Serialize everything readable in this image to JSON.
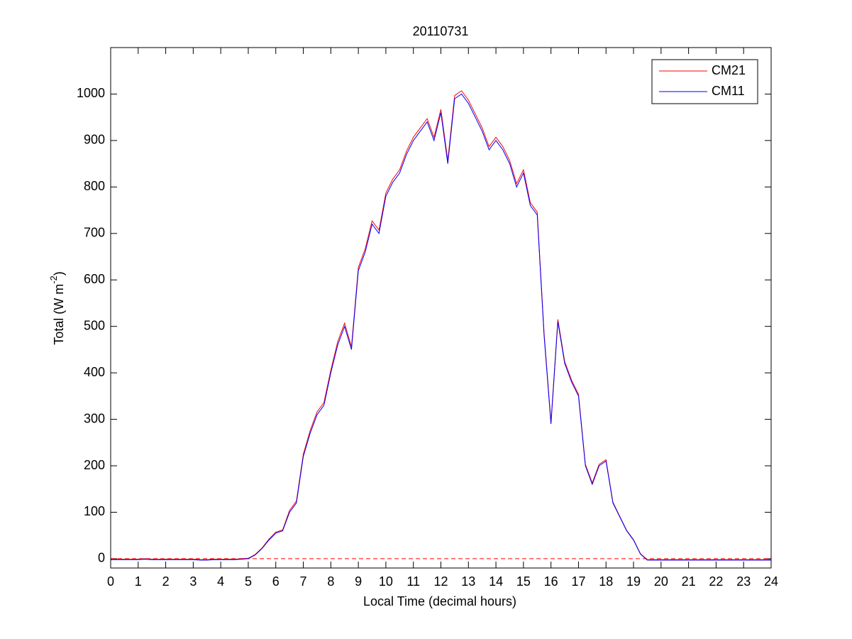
{
  "chart_data": {
    "type": "line",
    "title": "20110731",
    "xlabel": "Local Time (decimal hours)",
    "ylabel": {
      "text": "Total (W m",
      "sup": "-2",
      "end": ")"
    },
    "x": [
      0,
      0.25,
      0.5,
      0.75,
      1,
      1.25,
      1.5,
      1.75,
      2,
      2.25,
      2.5,
      2.75,
      3,
      3.25,
      3.5,
      3.75,
      4,
      4.25,
      4.5,
      4.75,
      5,
      5.25,
      5.5,
      5.75,
      6,
      6.25,
      6.5,
      6.75,
      7,
      7.25,
      7.5,
      7.75,
      8,
      8.25,
      8.5,
      8.75,
      9,
      9.25,
      9.5,
      9.75,
      10,
      10.25,
      10.5,
      10.75,
      11,
      11.25,
      11.5,
      11.75,
      12,
      12.25,
      12.5,
      12.75,
      13,
      13.25,
      13.5,
      13.75,
      14,
      14.25,
      14.5,
      14.75,
      15,
      15.25,
      15.5,
      15.75,
      16,
      16.25,
      16.5,
      16.75,
      17,
      17.25,
      17.5,
      17.75,
      18,
      18.25,
      18.5,
      18.75,
      19,
      19.25,
      19.5,
      19.75,
      20,
      20.25,
      20.5,
      20.75,
      21,
      21.25,
      21.5,
      21.75,
      22,
      22.25,
      22.5,
      22.75,
      23,
      23.25,
      23.5,
      23.75,
      24
    ],
    "series": [
      {
        "name": "CM21",
        "color": "#ff0000",
        "values": [
          -1,
          -1,
          -1,
          -1,
          -1,
          0,
          -1,
          -1,
          -1,
          -1,
          -1,
          -1,
          -1,
          -2,
          -2,
          -1,
          -1,
          -1,
          -1,
          0,
          1,
          9,
          23,
          42,
          57,
          62,
          104,
          124,
          225,
          276,
          316,
          336,
          406,
          467,
          507,
          456,
          627,
          667,
          727,
          707,
          787,
          817,
          837,
          877,
          907,
          927,
          947,
          907,
          967,
          857,
          997,
          1007,
          987,
          957,
          927,
          887,
          907,
          887,
          857,
          807,
          837,
          766,
          746,
          485,
          294,
          515,
          424,
          384,
          354,
          203,
          163,
          203,
          213,
          122,
          91,
          61,
          41,
          11,
          -2,
          -2,
          -2,
          -2,
          -2,
          -2,
          -2,
          -2,
          -2,
          -2,
          -2,
          -2,
          -2,
          -2,
          -2,
          -2,
          -2,
          -2,
          -2
        ]
      },
      {
        "name": "CM11",
        "color": "#0000ff",
        "values": [
          -2,
          -2,
          -2,
          -2,
          -2,
          -1,
          -2,
          -2,
          -2,
          -2,
          -2,
          -2,
          -2,
          -3,
          -3,
          -2,
          -2,
          -2,
          -2,
          -1,
          0,
          8,
          22,
          40,
          55,
          60,
          100,
          120,
          220,
          270,
          310,
          330,
          400,
          460,
          500,
          450,
          620,
          660,
          720,
          700,
          780,
          810,
          830,
          870,
          900,
          920,
          940,
          900,
          960,
          850,
          990,
          1000,
          980,
          950,
          920,
          880,
          900,
          880,
          850,
          800,
          830,
          760,
          740,
          480,
          290,
          510,
          420,
          380,
          350,
          200,
          160,
          200,
          210,
          120,
          90,
          60,
          40,
          10,
          -3,
          -3,
          -3,
          -3,
          -3,
          -3,
          -3,
          -3,
          -3,
          -3,
          -3,
          -3,
          -3,
          -3,
          -3,
          -3,
          -3,
          -3,
          -3
        ]
      }
    ],
    "hline": {
      "value": 0,
      "color": "#ff0000"
    },
    "xlim": [
      0,
      24
    ],
    "xticks": [
      0,
      1,
      2,
      3,
      4,
      5,
      6,
      7,
      8,
      9,
      10,
      11,
      12,
      13,
      14,
      15,
      16,
      17,
      18,
      19,
      20,
      21,
      22,
      23,
      24
    ],
    "ylim": [
      -20,
      1100
    ],
    "yticks": [
      0,
      100,
      200,
      300,
      400,
      500,
      600,
      700,
      800,
      900,
      1000
    ],
    "legend": "upper right"
  }
}
